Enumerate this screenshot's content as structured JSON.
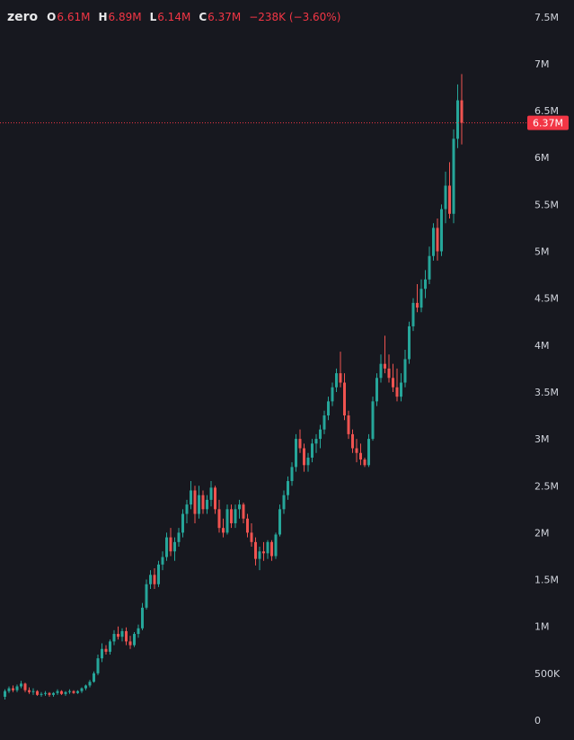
{
  "symbol": "zero",
  "ohlc": {
    "open_label": "O",
    "open": "6.61M",
    "high_label": "H",
    "high": "6.89M",
    "low_label": "L",
    "low": "6.14M",
    "close_label": "C",
    "close": "6.37M",
    "change": "−238K (−3.60%)"
  },
  "last_price_label": "6.37M",
  "colors": {
    "up": "#26a69a",
    "down": "#ef5350",
    "background": "#17181f",
    "price_line": "#f23645",
    "axis_text": "#d1d4dc"
  },
  "chart_data": {
    "type": "candlestick",
    "title": "",
    "xlabel": "",
    "ylabel": "",
    "ylim": [
      0,
      7500000
    ],
    "y_ticks": [
      {
        "value": 0,
        "label": "0"
      },
      {
        "value": 500000,
        "label": "500K"
      },
      {
        "value": 1000000,
        "label": "1M"
      },
      {
        "value": 1500000,
        "label": "1.5M"
      },
      {
        "value": 2000000,
        "label": "2M"
      },
      {
        "value": 2500000,
        "label": "2.5M"
      },
      {
        "value": 3000000,
        "label": "3M"
      },
      {
        "value": 3500000,
        "label": "3.5M"
      },
      {
        "value": 4000000,
        "label": "4M"
      },
      {
        "value": 4500000,
        "label": "4.5M"
      },
      {
        "value": 5000000,
        "label": "5M"
      },
      {
        "value": 5500000,
        "label": "5.5M"
      },
      {
        "value": 6000000,
        "label": "6M"
      },
      {
        "value": 6500000,
        "label": "6.5M"
      },
      {
        "value": 7000000,
        "label": "7M"
      },
      {
        "value": 7500000,
        "label": "7.5M"
      }
    ],
    "last_price": 6370000,
    "grid": false,
    "candles": [
      [
        0.25,
        0.33,
        0.22,
        0.31
      ],
      [
        0.31,
        0.36,
        0.29,
        0.34
      ],
      [
        0.34,
        0.37,
        0.3,
        0.32
      ],
      [
        0.32,
        0.38,
        0.3,
        0.36
      ],
      [
        0.36,
        0.42,
        0.34,
        0.39
      ],
      [
        0.39,
        0.4,
        0.3,
        0.32
      ],
      [
        0.32,
        0.35,
        0.28,
        0.3
      ],
      [
        0.3,
        0.34,
        0.27,
        0.31
      ],
      [
        0.31,
        0.32,
        0.26,
        0.27
      ],
      [
        0.27,
        0.3,
        0.25,
        0.28
      ],
      [
        0.28,
        0.31,
        0.26,
        0.29
      ],
      [
        0.29,
        0.3,
        0.25,
        0.27
      ],
      [
        0.27,
        0.3,
        0.25,
        0.29
      ],
      [
        0.29,
        0.33,
        0.27,
        0.31
      ],
      [
        0.31,
        0.32,
        0.27,
        0.28
      ],
      [
        0.28,
        0.31,
        0.26,
        0.3
      ],
      [
        0.3,
        0.33,
        0.28,
        0.31
      ],
      [
        0.31,
        0.32,
        0.28,
        0.29
      ],
      [
        0.29,
        0.32,
        0.28,
        0.31
      ],
      [
        0.31,
        0.35,
        0.29,
        0.34
      ],
      [
        0.34,
        0.38,
        0.32,
        0.37
      ],
      [
        0.37,
        0.43,
        0.35,
        0.41
      ],
      [
        0.41,
        0.52,
        0.4,
        0.5
      ],
      [
        0.5,
        0.7,
        0.48,
        0.66
      ],
      [
        0.66,
        0.82,
        0.62,
        0.76
      ],
      [
        0.76,
        0.8,
        0.7,
        0.73
      ],
      [
        0.73,
        0.86,
        0.7,
        0.84
      ],
      [
        0.84,
        0.96,
        0.8,
        0.92
      ],
      [
        0.92,
        1.0,
        0.86,
        0.89
      ],
      [
        0.89,
        0.98,
        0.84,
        0.95
      ],
      [
        0.95,
        0.99,
        0.8,
        0.84
      ],
      [
        0.84,
        0.9,
        0.76,
        0.8
      ],
      [
        0.8,
        0.94,
        0.78,
        0.92
      ],
      [
        0.92,
        1.02,
        0.88,
        0.98
      ],
      [
        0.98,
        1.25,
        0.96,
        1.2
      ],
      [
        1.2,
        1.5,
        1.18,
        1.45
      ],
      [
        1.45,
        1.6,
        1.4,
        1.55
      ],
      [
        1.55,
        1.62,
        1.4,
        1.45
      ],
      [
        1.45,
        1.7,
        1.42,
        1.66
      ],
      [
        1.66,
        1.8,
        1.6,
        1.74
      ],
      [
        1.74,
        2.0,
        1.7,
        1.95
      ],
      [
        1.95,
        2.05,
        1.75,
        1.8
      ],
      [
        1.8,
        1.95,
        1.7,
        1.9
      ],
      [
        1.9,
        2.05,
        1.85,
        2.0
      ],
      [
        2.0,
        2.25,
        1.95,
        2.2
      ],
      [
        2.2,
        2.35,
        2.1,
        2.3
      ],
      [
        2.3,
        2.55,
        2.25,
        2.45
      ],
      [
        2.45,
        2.5,
        2.1,
        2.2
      ],
      [
        2.2,
        2.5,
        2.15,
        2.4
      ],
      [
        2.4,
        2.45,
        2.2,
        2.25
      ],
      [
        2.25,
        2.4,
        2.2,
        2.35
      ],
      [
        2.35,
        2.55,
        2.28,
        2.48
      ],
      [
        2.48,
        2.5,
        2.2,
        2.25
      ],
      [
        2.25,
        2.35,
        2.0,
        2.05
      ],
      [
        2.05,
        2.15,
        1.95,
        2.0
      ],
      [
        2.0,
        2.3,
        1.98,
        2.25
      ],
      [
        2.25,
        2.3,
        2.05,
        2.1
      ],
      [
        2.1,
        2.3,
        2.05,
        2.25
      ],
      [
        2.25,
        2.35,
        2.15,
        2.3
      ],
      [
        2.3,
        2.32,
        2.1,
        2.15
      ],
      [
        2.15,
        2.2,
        1.95,
        2.0
      ],
      [
        2.0,
        2.1,
        1.85,
        1.9
      ],
      [
        1.9,
        1.95,
        1.65,
        1.72
      ],
      [
        1.72,
        1.85,
        1.6,
        1.8
      ],
      [
        1.8,
        1.9,
        1.7,
        1.78
      ],
      [
        1.78,
        1.92,
        1.72,
        1.9
      ],
      [
        1.9,
        1.92,
        1.7,
        1.75
      ],
      [
        1.75,
        2.0,
        1.72,
        1.98
      ],
      [
        1.98,
        2.3,
        1.96,
        2.25
      ],
      [
        2.25,
        2.45,
        2.2,
        2.4
      ],
      [
        2.4,
        2.6,
        2.35,
        2.55
      ],
      [
        2.55,
        2.75,
        2.5,
        2.7
      ],
      [
        2.7,
        3.05,
        2.65,
        3.0
      ],
      [
        3.0,
        3.1,
        2.85,
        2.9
      ],
      [
        2.9,
        2.95,
        2.65,
        2.72
      ],
      [
        2.72,
        2.85,
        2.65,
        2.8
      ],
      [
        2.8,
        3.0,
        2.75,
        2.95
      ],
      [
        2.95,
        3.05,
        2.85,
        3.0
      ],
      [
        3.0,
        3.15,
        2.9,
        3.1
      ],
      [
        3.1,
        3.3,
        3.05,
        3.25
      ],
      [
        3.25,
        3.45,
        3.2,
        3.4
      ],
      [
        3.4,
        3.6,
        3.35,
        3.55
      ],
      [
        3.55,
        3.75,
        3.5,
        3.7
      ],
      [
        3.7,
        3.93,
        3.55,
        3.6
      ],
      [
        3.6,
        3.7,
        3.2,
        3.25
      ],
      [
        3.25,
        3.3,
        3.0,
        3.05
      ],
      [
        3.05,
        3.1,
        2.85,
        2.9
      ],
      [
        2.9,
        3.0,
        2.75,
        2.85
      ],
      [
        2.85,
        2.95,
        2.72,
        2.78
      ],
      [
        2.78,
        2.8,
        2.7,
        2.72
      ],
      [
        2.72,
        3.05,
        2.7,
        3.0
      ],
      [
        3.0,
        3.45,
        2.98,
        3.4
      ],
      [
        3.4,
        3.7,
        3.35,
        3.65
      ],
      [
        3.65,
        3.9,
        3.6,
        3.8
      ],
      [
        3.8,
        4.1,
        3.7,
        3.75
      ],
      [
        3.75,
        3.9,
        3.6,
        3.65
      ],
      [
        3.65,
        3.8,
        3.5,
        3.55
      ],
      [
        3.55,
        3.75,
        3.4,
        3.45
      ],
      [
        3.45,
        3.7,
        3.4,
        3.6
      ],
      [
        3.6,
        3.95,
        3.55,
        3.85
      ],
      [
        3.85,
        4.25,
        3.8,
        4.2
      ],
      [
        4.2,
        4.5,
        4.15,
        4.45
      ],
      [
        4.45,
        4.65,
        4.35,
        4.4
      ],
      [
        4.4,
        4.7,
        4.35,
        4.6
      ],
      [
        4.6,
        4.8,
        4.5,
        4.7
      ],
      [
        4.7,
        5.05,
        4.65,
        4.95
      ],
      [
        4.95,
        5.3,
        4.9,
        5.25
      ],
      [
        5.25,
        5.35,
        4.9,
        5.0
      ],
      [
        5.0,
        5.5,
        4.95,
        5.45
      ],
      [
        5.45,
        5.85,
        5.3,
        5.7
      ],
      [
        5.7,
        5.95,
        5.35,
        5.4
      ],
      [
        5.4,
        6.3,
        5.3,
        6.2
      ],
      [
        6.2,
        6.78,
        6.1,
        6.61
      ],
      [
        6.61,
        6.89,
        6.14,
        6.37
      ]
    ]
  }
}
